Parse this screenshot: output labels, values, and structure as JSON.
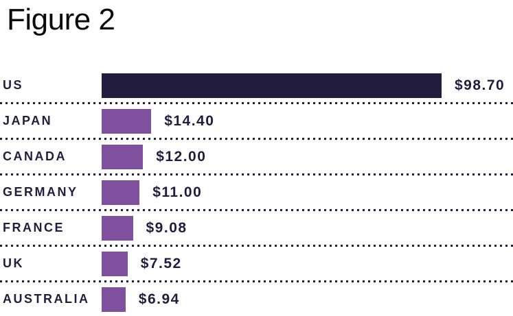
{
  "chart_data": {
    "type": "bar",
    "orientation": "horizontal",
    "title": "Figure 2",
    "categories": [
      "US",
      "JAPAN",
      "CANADA",
      "GERMANY",
      "FRANCE",
      "UK",
      "AUSTRALIA"
    ],
    "values": [
      98.7,
      14.4,
      12.0,
      11.0,
      9.08,
      7.52,
      6.94
    ],
    "value_labels": [
      "$98.70",
      "$14.40",
      "$12.00",
      "$11.00",
      "$9.08",
      "$7.52",
      "$6.94"
    ],
    "bar_colors": [
      "#221c3e",
      "#7e509e",
      "#7e509e",
      "#7e509e",
      "#7e509e",
      "#7e509e",
      "#7e509e"
    ],
    "xlabel": "",
    "ylabel": "",
    "xlim": [
      0,
      98.7
    ],
    "legend": "none",
    "grid": "dotted horizontal separators between rows",
    "colors": {
      "highlight_bar": "#221c3e",
      "default_bar": "#7e509e",
      "text": "#221c3e",
      "separator": "#221c3e",
      "title_text": "#0b0b0c",
      "background": "#ffffff"
    }
  }
}
